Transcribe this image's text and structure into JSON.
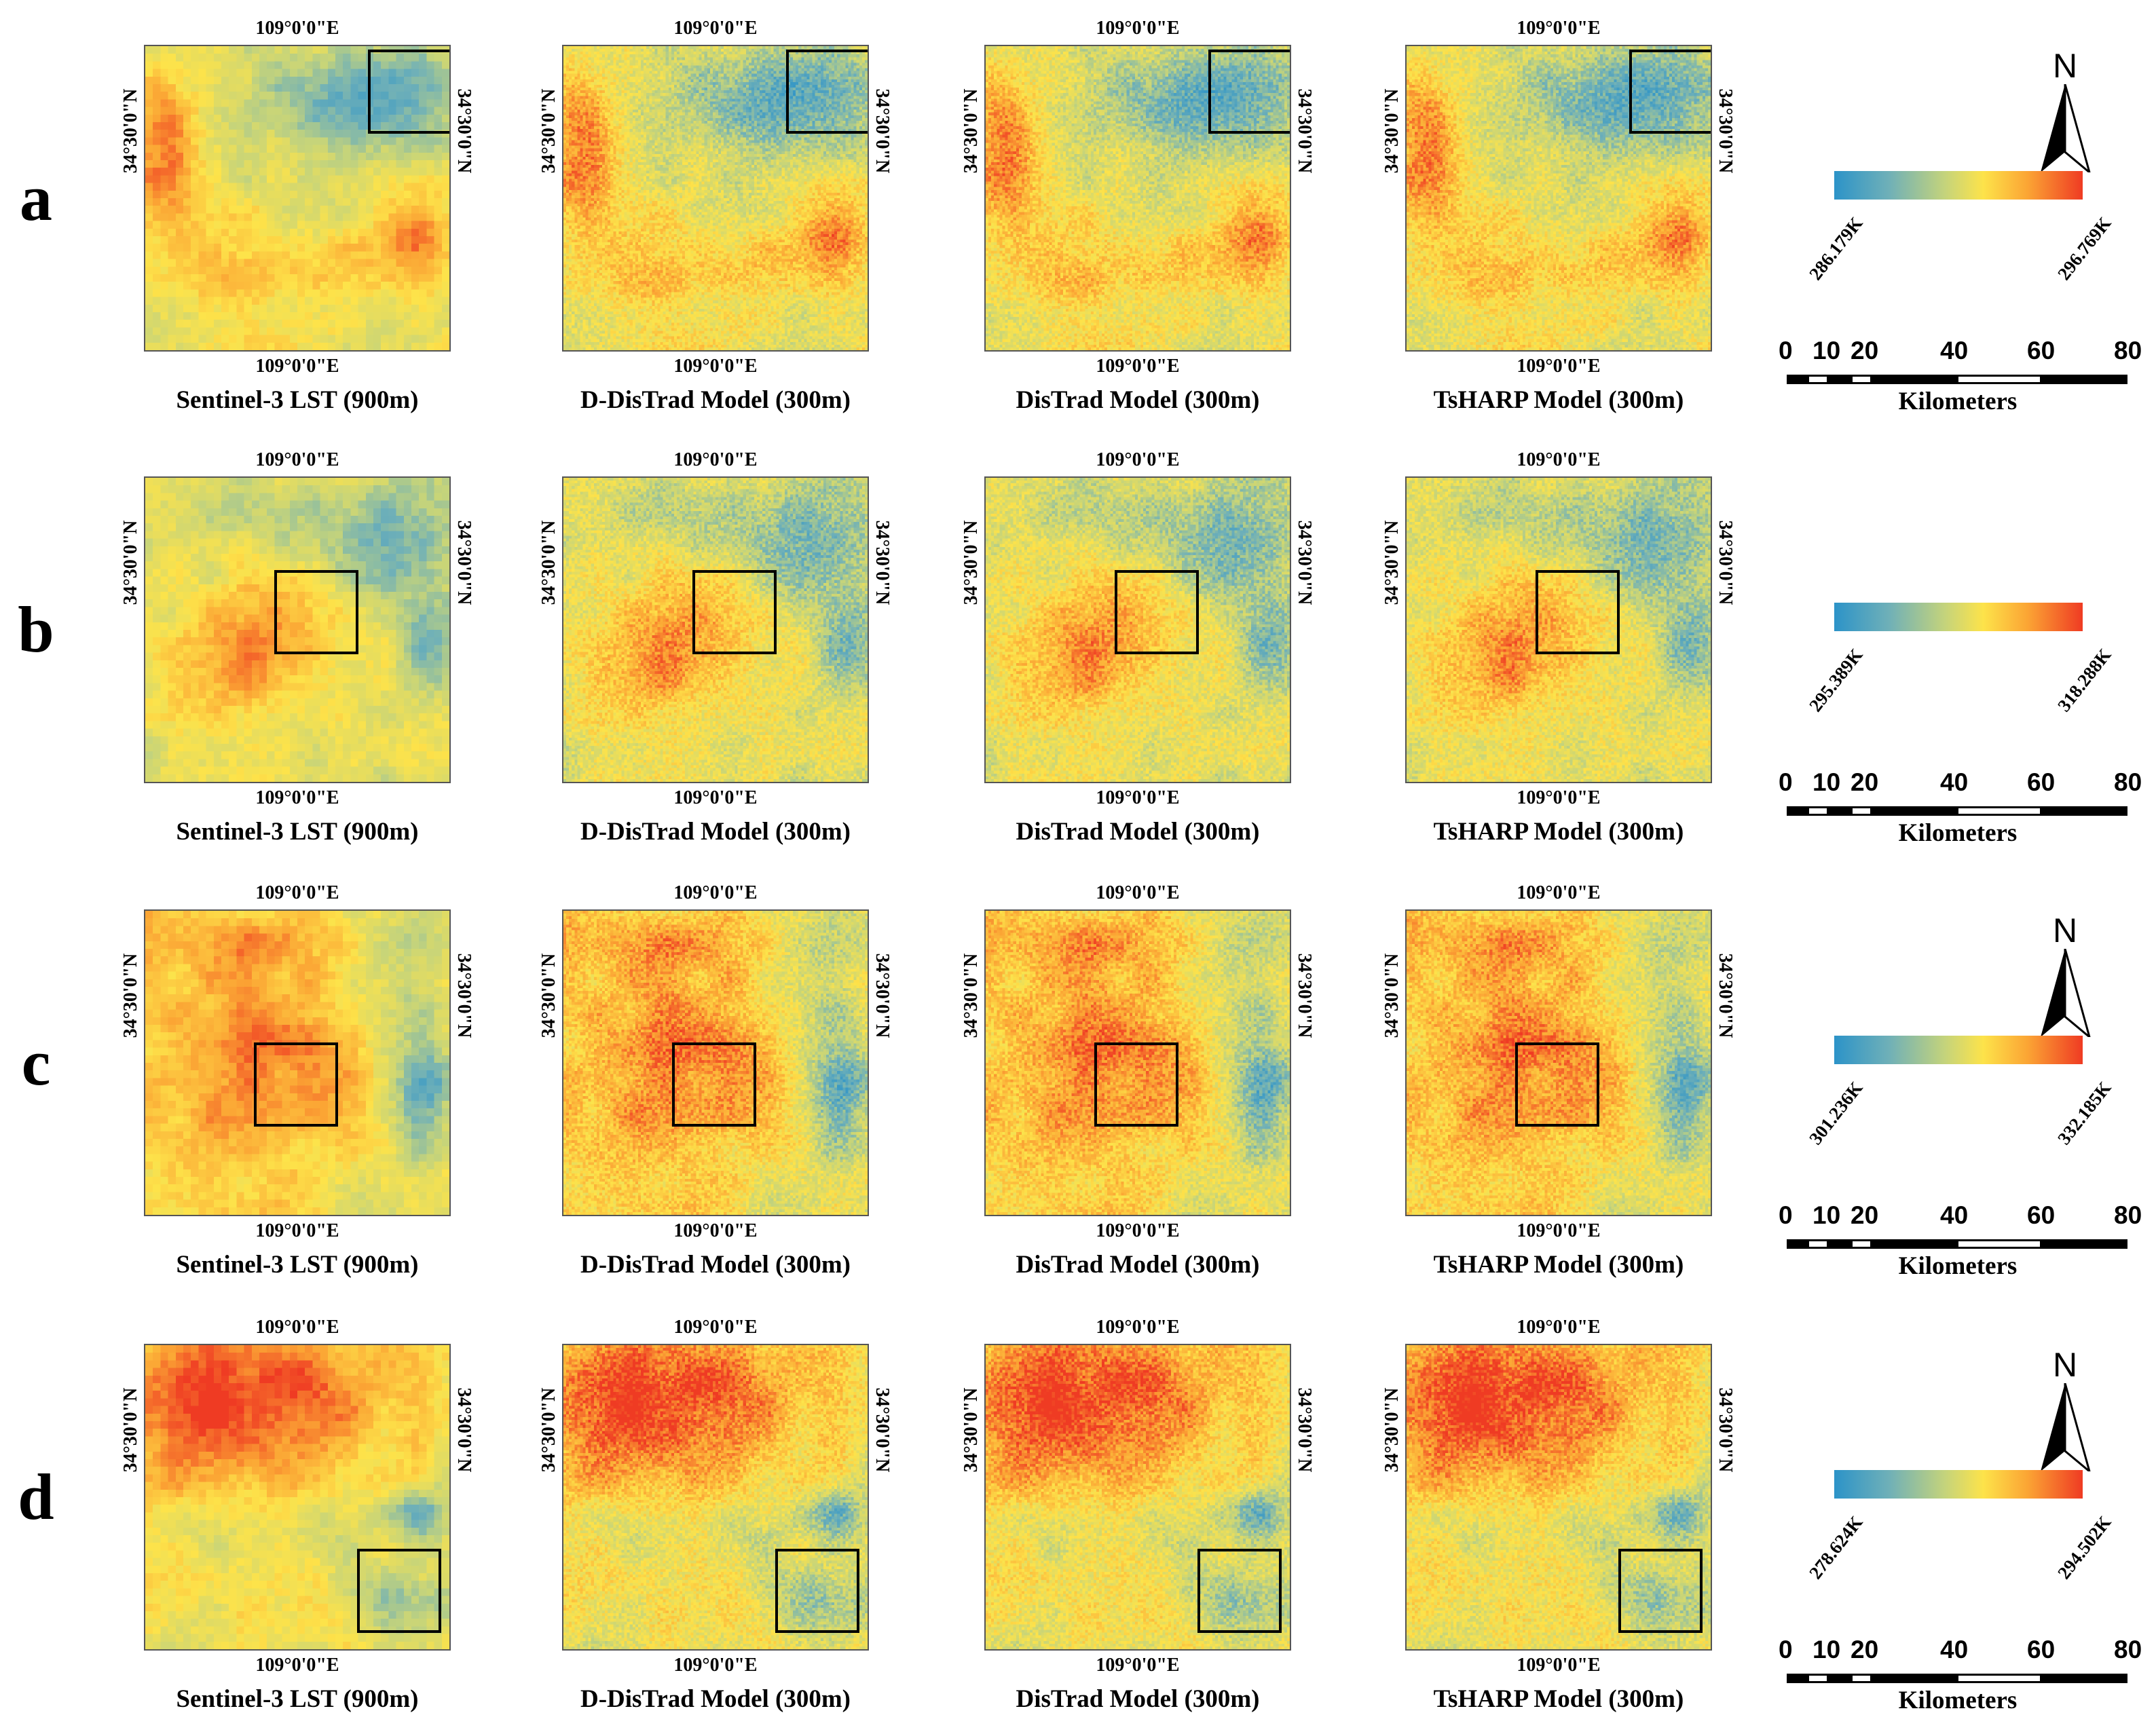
{
  "figure": {
    "rows": [
      {
        "id": "a",
        "letter": "a",
        "legend": {
          "min": "286.179K",
          "max": "296.769K"
        },
        "show_north": true
      },
      {
        "id": "b",
        "letter": "b",
        "legend": {
          "min": "295.389K",
          "max": "318.288K"
        },
        "show_north": false
      },
      {
        "id": "c",
        "letter": "c",
        "legend": {
          "min": "301.236K",
          "max": "332.185K"
        },
        "show_north": true
      },
      {
        "id": "d",
        "letter": "d",
        "legend": {
          "min": "278.624K",
          "max": "294.502K"
        },
        "show_north": true
      }
    ],
    "columns": [
      {
        "id": "sentinel",
        "title": "Sentinel-3 LST (900m)"
      },
      {
        "id": "d-distrad",
        "title": "D-DisTrad Model (300m)"
      },
      {
        "id": "distrad",
        "title": "DisTrad Model (300m)"
      },
      {
        "id": "tsharp",
        "title": "TsHARP Model (300m)"
      }
    ],
    "longitude_label": "109°0'0\"E",
    "latitude_label": "34°30'0\"N",
    "north_label": "N",
    "scale_bar": {
      "ticks": [
        "0",
        "10",
        "20",
        "40",
        "60",
        "80"
      ],
      "units": "Kilometers"
    },
    "colormap": [
      "#2c93c8",
      "#6fb0b8",
      "#c6d47a",
      "#fde34a",
      "#fba434",
      "#ef3b23"
    ]
  }
}
